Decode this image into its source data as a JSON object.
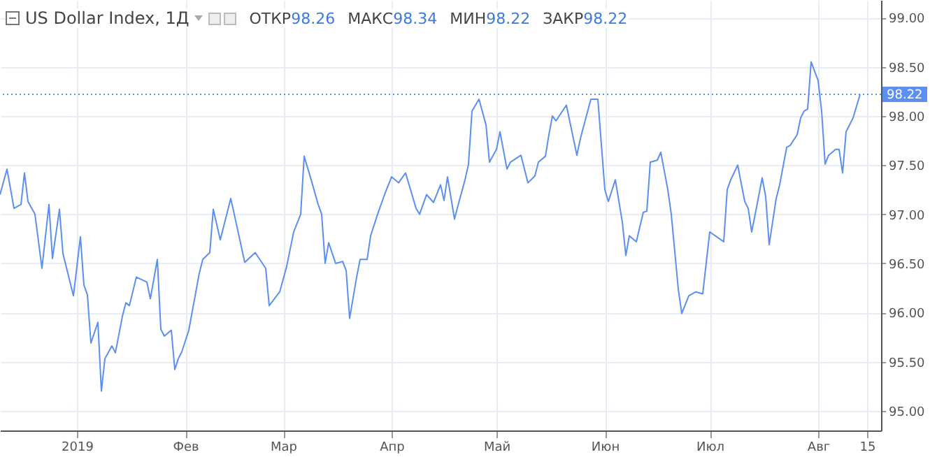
{
  "chart_data": {
    "type": "line",
    "title": "US Dollar Index, 1Д",
    "annotations": [
      "ОТКР98.26",
      "МАКС98.34",
      "МИН98.22",
      "ЗАКР98.22"
    ],
    "x": [
      "2018-12-10",
      "2018-12-12",
      "2018-12-14",
      "2018-12-16",
      "2018-12-17",
      "2018-12-18",
      "2018-12-20",
      "2018-12-22",
      "2018-12-24",
      "2018-12-25",
      "2018-12-27",
      "2018-12-28",
      "2018-12-31",
      "2019-01-02",
      "2019-01-03",
      "2019-01-04",
      "2019-01-05",
      "2019-01-07",
      "2019-01-08",
      "2019-01-09",
      "2019-01-11",
      "2019-01-12",
      "2019-01-14",
      "2019-01-15",
      "2019-01-16",
      "2019-01-18",
      "2019-01-21",
      "2019-01-22",
      "2019-01-24",
      "2019-01-25",
      "2019-01-26",
      "2019-01-28",
      "2019-01-29",
      "2019-01-30",
      "2019-01-31",
      "2019-02-02",
      "2019-02-05",
      "2019-02-06",
      "2019-02-08",
      "2019-02-09",
      "2019-02-11",
      "2019-02-14",
      "2019-02-15",
      "2019-02-18",
      "2019-02-21",
      "2019-02-24",
      "2019-02-25",
      "2019-02-28",
      "2019-03-02",
      "2019-03-04",
      "2019-03-06",
      "2019-03-07",
      "2019-03-09",
      "2019-03-11",
      "2019-03-12",
      "2019-03-13",
      "2019-03-14",
      "2019-03-16",
      "2019-03-18",
      "2019-03-19",
      "2019-03-20",
      "2019-03-22",
      "2019-03-23",
      "2019-03-25",
      "2019-03-26",
      "2019-03-28",
      "2019-03-30",
      "2019-04-01",
      "2019-04-03",
      "2019-04-05",
      "2019-04-08",
      "2019-04-09",
      "2019-04-11",
      "2019-04-13",
      "2019-04-15",
      "2019-04-16",
      "2019-04-17",
      "2019-04-19",
      "2019-04-20",
      "2019-04-22",
      "2019-04-23",
      "2019-04-24",
      "2019-04-26",
      "2019-04-28",
      "2019-04-29",
      "2019-05-01",
      "2019-05-02",
      "2019-05-04",
      "2019-05-05",
      "2019-05-08",
      "2019-05-10",
      "2019-05-12",
      "2019-05-13",
      "2019-05-15",
      "2019-05-16",
      "2019-05-17",
      "2019-05-18",
      "2019-05-21",
      "2019-05-24",
      "2019-05-25",
      "2019-05-28",
      "2019-05-30",
      "2019-06-01",
      "2019-06-02",
      "2019-06-04",
      "2019-06-06",
      "2019-06-07",
      "2019-06-08",
      "2019-06-10",
      "2019-06-12",
      "2019-06-13",
      "2019-06-14",
      "2019-06-16",
      "2019-06-17",
      "2019-06-19",
      "2019-06-20",
      "2019-06-22",
      "2019-06-23",
      "2019-06-25",
      "2019-06-27",
      "2019-06-29",
      "2019-07-01",
      "2019-07-03",
      "2019-07-05",
      "2019-07-06",
      "2019-07-07",
      "2019-07-09",
      "2019-07-11",
      "2019-07-12",
      "2019-07-13",
      "2019-07-14",
      "2019-07-16",
      "2019-07-17",
      "2019-07-18",
      "2019-07-20",
      "2019-07-21",
      "2019-07-23",
      "2019-07-24",
      "2019-07-26",
      "2019-07-27",
      "2019-07-28",
      "2019-07-29",
      "2019-07-30",
      "2019-08-01",
      "2019-08-02",
      "2019-08-03",
      "2019-08-04",
      "2019-08-06",
      "2019-08-07",
      "2019-08-08",
      "2019-08-09",
      "2019-08-11",
      "2019-08-13"
    ],
    "series": [
      {
        "color": "#5b8ff0",
        "values": [
          97.2,
          97.46,
          97.06,
          97.1,
          97.42,
          97.13,
          97.0,
          96.45,
          97.1,
          96.55,
          97.05,
          96.6,
          96.17,
          96.77,
          96.28,
          96.18,
          95.69,
          95.9,
          95.2,
          95.53,
          95.66,
          95.59,
          95.96,
          96.1,
          96.07,
          96.36,
          96.31,
          96.14,
          96.54,
          95.83,
          95.76,
          95.82,
          95.42,
          95.53,
          95.6,
          95.82,
          96.4,
          96.54,
          96.61,
          97.05,
          96.74,
          97.16,
          97.0,
          96.51,
          96.61,
          96.45,
          96.07,
          96.21,
          96.47,
          96.82,
          97.0,
          97.59,
          97.35,
          97.1,
          97.0,
          96.5,
          96.71,
          96.5,
          96.52,
          96.43,
          95.94,
          96.36,
          96.54,
          96.54,
          96.78,
          97.0,
          97.2,
          97.38,
          97.32,
          97.42,
          97.06,
          97.0,
          97.2,
          97.12,
          97.3,
          97.14,
          97.38,
          96.95,
          97.09,
          97.35,
          97.51,
          98.05,
          98.17,
          97.91,
          97.53,
          97.66,
          97.84,
          97.46,
          97.53,
          97.6,
          97.32,
          97.39,
          97.53,
          97.59,
          97.81,
          98.0,
          97.95,
          98.11,
          97.6,
          97.77,
          98.17,
          98.17,
          97.25,
          97.13,
          97.35,
          96.92,
          96.58,
          96.78,
          96.72,
          97.02,
          97.03,
          97.53,
          97.55,
          97.63,
          97.25,
          97.0,
          96.24,
          95.99,
          96.17,
          96.21,
          96.19,
          96.82,
          96.77,
          96.72,
          97.25,
          97.35,
          97.5,
          97.13,
          97.06,
          96.82,
          97.0,
          97.37,
          97.18,
          96.69,
          97.16,
          97.3,
          97.68,
          97.7,
          97.81,
          97.98,
          98.05,
          98.07,
          98.55,
          98.36,
          98.05,
          97.51,
          97.6,
          97.66,
          97.66,
          97.42,
          97.84,
          97.98,
          98.22
        ]
      }
    ],
    "xlim": [
      "2018-12-10",
      "2019-08-19"
    ],
    "xticks": [
      {
        "value": "2019-01-01",
        "label": "2019"
      },
      {
        "value": "2019-02-01",
        "label": "Фев"
      },
      {
        "value": "2019-03-01",
        "label": "Мар"
      },
      {
        "value": "2019-04-01",
        "label": "Апр"
      },
      {
        "value": "2019-05-01",
        "label": "Май"
      },
      {
        "value": "2019-06-01",
        "label": "Июн"
      },
      {
        "value": "2019-07-01",
        "label": "Июл"
      },
      {
        "value": "2019-08-01",
        "label": "Авг"
      },
      {
        "value": "2019-08-15",
        "label": "15"
      }
    ],
    "ylim": [
      94.8,
      99.18
    ],
    "yticks": [
      {
        "value": 95,
        "label": "95.00"
      },
      {
        "value": 95.5,
        "label": "95.50"
      },
      {
        "value": 96,
        "label": "96.00"
      },
      {
        "value": 96.5,
        "label": "96.50"
      },
      {
        "value": 97,
        "label": "97.00"
      },
      {
        "value": 97.5,
        "label": "97.50"
      },
      {
        "value": 98,
        "label": "98.00"
      },
      {
        "value": 98.5,
        "label": "98.50"
      },
      {
        "value": 99,
        "label": "99.00"
      }
    ],
    "grid": true,
    "ref_lines": [
      {
        "axis": "y",
        "value": 98.22,
        "label": "98.22",
        "color": "#5b8ff0",
        "line_style": "dotted"
      }
    ]
  }
}
